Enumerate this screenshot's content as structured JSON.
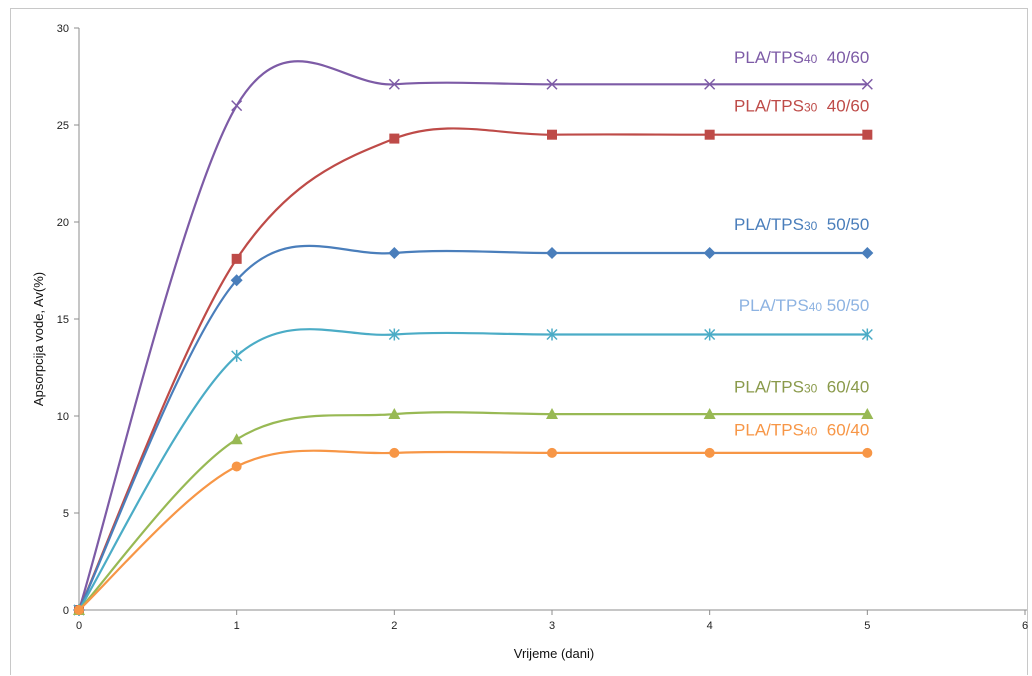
{
  "chart_data": {
    "type": "line",
    "xlabel": "Vrijeme (dani)",
    "ylabel": "Apsorpcija vode, Av(%)",
    "xlim": [
      0,
      6
    ],
    "ylim": [
      0,
      30
    ],
    "x_ticks": [
      0,
      1,
      2,
      3,
      4,
      5,
      6
    ],
    "y_ticks": [
      0,
      5,
      10,
      15,
      20,
      25,
      30
    ],
    "grid": false,
    "legend": "inline labels at right",
    "x": [
      0,
      1,
      2,
      3,
      4,
      5
    ],
    "series": [
      {
        "name": "PLA/TPS40 40/60",
        "label": {
          "pre": "PLA/TPS",
          "sub": "40",
          "post": "  40/60"
        },
        "values": [
          0,
          26.0,
          27.1,
          27.1,
          27.1,
          27.1
        ],
        "color": "#7D5BA6",
        "marker": "x",
        "label_xy": [
          5.0,
          28.2
        ]
      },
      {
        "name": "PLA/TPS30 40/60",
        "label": {
          "pre": "PLA/TPS",
          "sub": "30",
          "post": "  40/60"
        },
        "values": [
          0,
          18.1,
          24.3,
          24.5,
          24.5,
          24.5
        ],
        "color": "#BE4B48",
        "marker": "square",
        "label_xy": [
          5.0,
          25.7
        ]
      },
      {
        "name": "PLA/TPS30 50/50",
        "label": {
          "pre": "PLA/TPS",
          "sub": "30",
          "post": "  50/50"
        },
        "values": [
          0,
          17.0,
          18.4,
          18.4,
          18.4,
          18.4
        ],
        "color": "#4A7EBB",
        "marker": "diamond",
        "label_xy": [
          5.0,
          19.6
        ]
      },
      {
        "name": "PLA/TPS40 50/50",
        "label": {
          "pre": "PLA/TPS",
          "sub": "40",
          "post": " 50/50"
        },
        "values": [
          0,
          13.1,
          14.2,
          14.2,
          14.2,
          14.2
        ],
        "color": "#4BACC6",
        "label_color": "#8DB3E2",
        "marker": "asterisk",
        "label_xy": [
          5.0,
          15.4
        ]
      },
      {
        "name": "PLA/TPS30 60/40",
        "label": {
          "pre": "PLA/TPS",
          "sub": "30",
          "post": "  60/40"
        },
        "values": [
          0,
          8.8,
          10.1,
          10.1,
          10.1,
          10.1
        ],
        "color": "#98B954",
        "label_color": "#8A9A4B",
        "marker": "triangle",
        "label_xy": [
          5.0,
          11.2
        ]
      },
      {
        "name": "PLA/TPS40 60/40",
        "label": {
          "pre": "PLA/TPS",
          "sub": "40",
          "post": "  60/40"
        },
        "values": [
          0,
          7.4,
          8.1,
          8.1,
          8.1,
          8.1
        ],
        "color": "#F79646",
        "marker": "circle",
        "label_xy": [
          5.0,
          9.0
        ]
      }
    ]
  }
}
